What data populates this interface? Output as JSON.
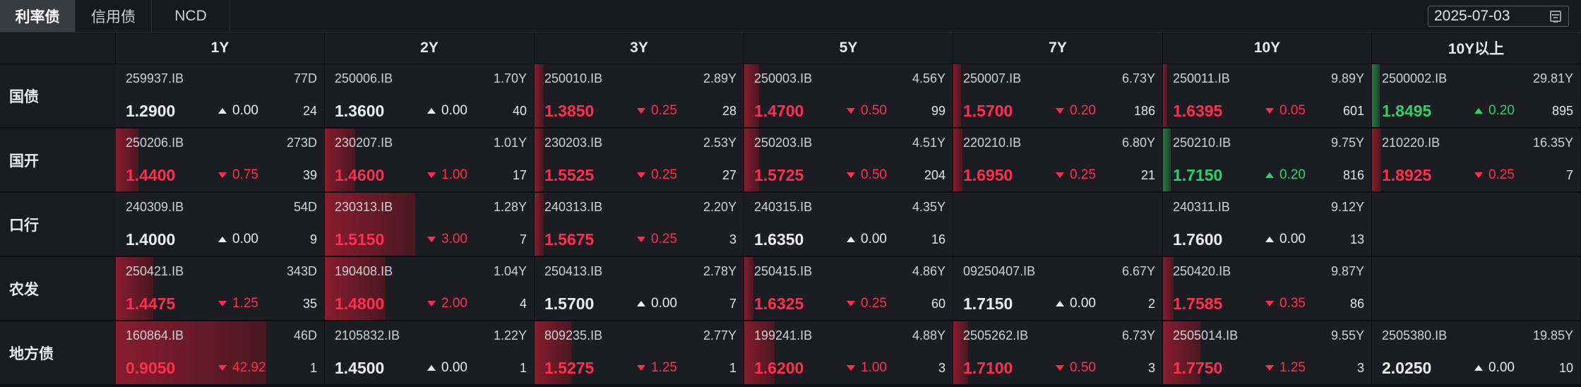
{
  "tabs": [
    {
      "label": "利率债",
      "active": true
    },
    {
      "label": "信用债",
      "active": false
    },
    {
      "label": "NCD",
      "active": false
    }
  ],
  "date": {
    "value": "2025-07-03",
    "icon": "calendar-icon"
  },
  "columns": [
    "1Y",
    "2Y",
    "3Y",
    "5Y",
    "7Y",
    "10Y",
    "10Y以上"
  ],
  "rows": [
    {
      "label": "国债",
      "cells": [
        {
          "code": "259937.IB",
          "term": "77D",
          "yield": "1.2900",
          "change": "0.00",
          "dir": "flat",
          "volume": "24",
          "bar": 0
        },
        {
          "code": "250006.IB",
          "term": "1.70Y",
          "yield": "1.3600",
          "change": "0.00",
          "dir": "flat",
          "volume": "40",
          "bar": 0
        },
        {
          "code": "250010.IB",
          "term": "2.89Y",
          "yield": "1.3850",
          "change": "0.25",
          "dir": "up",
          "volume": "28",
          "bar": 0.06,
          "barColor": "red"
        },
        {
          "code": "250003.IB",
          "term": "4.56Y",
          "yield": "1.4700",
          "change": "0.50",
          "dir": "up",
          "volume": "99",
          "bar": 0.1,
          "barColor": "red"
        },
        {
          "code": "250007.IB",
          "term": "6.73Y",
          "yield": "1.5700",
          "change": "0.20",
          "dir": "up",
          "volume": "186",
          "bar": 0.05,
          "barColor": "red"
        },
        {
          "code": "250011.IB",
          "term": "9.89Y",
          "yield": "1.6395",
          "change": "0.05",
          "dir": "up",
          "volume": "601",
          "bar": 0.03,
          "barColor": "red"
        },
        {
          "code": "2500002.IB",
          "term": "29.81Y",
          "yield": "1.8495",
          "change": "0.20",
          "dir": "down",
          "volume": "895",
          "bar": 0.05,
          "barColor": "green"
        }
      ]
    },
    {
      "label": "国开",
      "cells": [
        {
          "code": "250206.IB",
          "term": "273D",
          "yield": "1.4400",
          "change": "0.75",
          "dir": "up",
          "volume": "39",
          "bar": 0.15,
          "barColor": "red"
        },
        {
          "code": "230207.IB",
          "term": "1.01Y",
          "yield": "1.4600",
          "change": "1.00",
          "dir": "up",
          "volume": "17",
          "bar": 0.2,
          "barColor": "red"
        },
        {
          "code": "230203.IB",
          "term": "2.53Y",
          "yield": "1.5525",
          "change": "0.25",
          "dir": "up",
          "volume": "27",
          "bar": 0.06,
          "barColor": "red"
        },
        {
          "code": "250203.IB",
          "term": "4.51Y",
          "yield": "1.5725",
          "change": "0.50",
          "dir": "up",
          "volume": "204",
          "bar": 0.1,
          "barColor": "red"
        },
        {
          "code": "220210.IB",
          "term": "6.80Y",
          "yield": "1.6950",
          "change": "0.25",
          "dir": "up",
          "volume": "21",
          "bar": 0.06,
          "barColor": "red"
        },
        {
          "code": "250210.IB",
          "term": "9.75Y",
          "yield": "1.7150",
          "change": "0.20",
          "dir": "down",
          "volume": "816",
          "bar": 0.05,
          "barColor": "green"
        },
        {
          "code": "210220.IB",
          "term": "16.35Y",
          "yield": "1.8925",
          "change": "0.25",
          "dir": "up",
          "volume": "7",
          "bar": 0.06,
          "barColor": "red"
        }
      ]
    },
    {
      "label": "口行",
      "cells": [
        {
          "code": "240309.IB",
          "term": "54D",
          "yield": "1.4000",
          "change": "0.00",
          "dir": "flat",
          "volume": "9",
          "bar": 0
        },
        {
          "code": "230313.IB",
          "term": "1.28Y",
          "yield": "1.5150",
          "change": "3.00",
          "dir": "up",
          "volume": "7",
          "bar": 0.6,
          "barColor": "red"
        },
        {
          "code": "240313.IB",
          "term": "2.20Y",
          "yield": "1.5675",
          "change": "0.25",
          "dir": "up",
          "volume": "3",
          "bar": 0.06,
          "barColor": "red"
        },
        {
          "code": "240315.IB",
          "term": "4.35Y",
          "yield": "1.6350",
          "change": "0.00",
          "dir": "flat",
          "volume": "16",
          "bar": 0
        },
        null,
        {
          "code": "240311.IB",
          "term": "9.12Y",
          "yield": "1.7600",
          "change": "0.00",
          "dir": "flat",
          "volume": "13",
          "bar": 0
        },
        null
      ]
    },
    {
      "label": "农发",
      "cells": [
        {
          "code": "250421.IB",
          "term": "343D",
          "yield": "1.4475",
          "change": "1.25",
          "dir": "up",
          "volume": "35",
          "bar": 0.25,
          "barColor": "red"
        },
        {
          "code": "190408.IB",
          "term": "1.04Y",
          "yield": "1.4800",
          "change": "2.00",
          "dir": "up",
          "volume": "4",
          "bar": 0.4,
          "barColor": "red"
        },
        {
          "code": "250413.IB",
          "term": "2.78Y",
          "yield": "1.5700",
          "change": "0.00",
          "dir": "flat",
          "volume": "7",
          "bar": 0
        },
        {
          "code": "250415.IB",
          "term": "4.86Y",
          "yield": "1.6325",
          "change": "0.25",
          "dir": "up",
          "volume": "60",
          "bar": 0.06,
          "barColor": "red"
        },
        {
          "code": "09250407.IB",
          "term": "6.67Y",
          "yield": "1.7150",
          "change": "0.00",
          "dir": "flat",
          "volume": "2",
          "bar": 0
        },
        {
          "code": "250420.IB",
          "term": "9.87Y",
          "yield": "1.7585",
          "change": "0.35",
          "dir": "up",
          "volume": "86",
          "bar": 0.07,
          "barColor": "red"
        },
        null
      ]
    },
    {
      "label": "地方债",
      "cells": [
        {
          "code": "160864.IB",
          "term": "46D",
          "yield": "0.9050",
          "change": "42.92",
          "dir": "up",
          "volume": "1",
          "bar": 1.0,
          "barColor": "red"
        },
        {
          "code": "2105832.IB",
          "term": "1.22Y",
          "yield": "1.4500",
          "change": "0.00",
          "dir": "flat",
          "volume": "1",
          "bar": 0
        },
        {
          "code": "809235.IB",
          "term": "2.77Y",
          "yield": "1.5275",
          "change": "1.25",
          "dir": "up",
          "volume": "1",
          "bar": 0.25,
          "barColor": "red"
        },
        {
          "code": "199241.IB",
          "term": "4.88Y",
          "yield": "1.6200",
          "change": "1.00",
          "dir": "up",
          "volume": "3",
          "bar": 0.2,
          "barColor": "red"
        },
        {
          "code": "2505262.IB",
          "term": "6.73Y",
          "yield": "1.7100",
          "change": "0.50",
          "dir": "up",
          "volume": "3",
          "bar": 0.1,
          "barColor": "red"
        },
        {
          "code": "2505014.IB",
          "term": "9.55Y",
          "yield": "1.7750",
          "change": "1.25",
          "dir": "up",
          "volume": "3",
          "bar": 0.25,
          "barColor": "red"
        },
        {
          "code": "2505380.IB",
          "term": "19.85Y",
          "yield": "2.0250",
          "change": "0.00",
          "dir": "flat",
          "volume": "10",
          "bar": 0
        }
      ]
    }
  ],
  "colors": {
    "up": "#ff2d4e",
    "down": "#27d36a",
    "flat": "#ececec"
  }
}
